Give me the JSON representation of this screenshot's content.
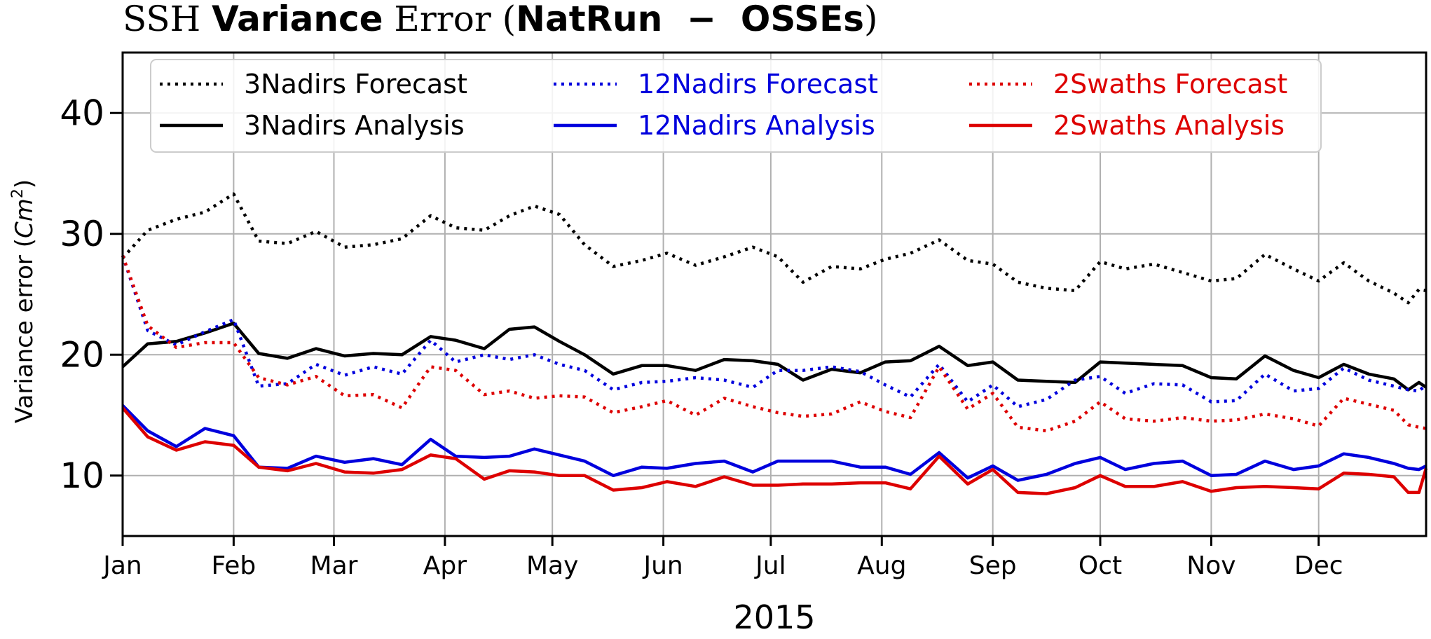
{
  "chart_data": {
    "type": "line",
    "title_parts": [
      {
        "text": "SSH ",
        "serif": true,
        "bold": false
      },
      {
        "text": "Variance",
        "serif": false,
        "bold": true
      },
      {
        "text": " Error (",
        "serif": true,
        "bold": false
      },
      {
        "text": "NatRun  −  OSSEs",
        "serif": false,
        "bold": true
      },
      {
        "text": ")",
        "serif": true,
        "bold": false
      }
    ],
    "xlabel": "2015",
    "ylabel": "Variance error",
    "ylabel_unit_base": "Cm",
    "ylabel_unit_exp": "2",
    "ylim": [
      5,
      45
    ],
    "yticks": [
      10,
      20,
      30,
      40
    ],
    "xlim": [
      "2015-01-01",
      "2015-12-31"
    ],
    "xticks": [
      {
        "date": "2015-01-01",
        "label": "Jan"
      },
      {
        "date": "2015-02-01",
        "label": "Feb"
      },
      {
        "date": "2015-03-01",
        "label": "Mar"
      },
      {
        "date": "2015-04-01",
        "label": "Apr"
      },
      {
        "date": "2015-05-01",
        "label": "May"
      },
      {
        "date": "2015-06-01",
        "label": "Jun"
      },
      {
        "date": "2015-07-01",
        "label": "Jul"
      },
      {
        "date": "2015-08-01",
        "label": "Aug"
      },
      {
        "date": "2015-09-01",
        "label": "Sep"
      },
      {
        "date": "2015-10-01",
        "label": "Oct"
      },
      {
        "date": "2015-11-01",
        "label": "Nov"
      },
      {
        "date": "2015-12-01",
        "label": "Dec"
      }
    ],
    "grid": true,
    "legend_position": "top",
    "x": [
      "2015-01-01",
      "2015-01-08",
      "2015-01-16",
      "2015-01-24",
      "2015-02-01",
      "2015-02-08",
      "2015-02-16",
      "2015-02-24",
      "2015-03-04",
      "2015-03-12",
      "2015-03-20",
      "2015-03-28",
      "2015-04-04",
      "2015-04-12",
      "2015-04-19",
      "2015-04-26",
      "2015-05-03",
      "2015-05-10",
      "2015-05-18",
      "2015-05-26",
      "2015-06-02",
      "2015-06-10",
      "2015-06-18",
      "2015-06-26",
      "2015-07-03",
      "2015-07-10",
      "2015-07-18",
      "2015-07-26",
      "2015-08-02",
      "2015-08-09",
      "2015-08-17",
      "2015-08-25",
      "2015-09-01",
      "2015-09-08",
      "2015-09-16",
      "2015-09-24",
      "2015-10-01",
      "2015-10-08",
      "2015-10-16",
      "2015-10-24",
      "2015-11-01",
      "2015-11-08",
      "2015-11-16",
      "2015-11-24",
      "2015-12-01",
      "2015-12-08",
      "2015-12-15",
      "2015-12-22"
    ],
    "series": [
      {
        "name": "3Nadirs Forecast",
        "color": "#000000",
        "dash": "dotted",
        "values": [
          28.0,
          30.3,
          31.2,
          31.8,
          33.3,
          29.4,
          29.2,
          30.2,
          28.9,
          29.1,
          29.6,
          31.5,
          30.5,
          30.3,
          31.5,
          32.3,
          31.6,
          29.1,
          27.3,
          27.8,
          28.4,
          27.4,
          28.1,
          28.9,
          28.1,
          26.0,
          27.3,
          27.1,
          27.9,
          28.4,
          29.5,
          27.8,
          27.5,
          26.0,
          25.5,
          25.3,
          27.7,
          27.1,
          27.5,
          26.8,
          26.1,
          26.3,
          28.3,
          27.1,
          26.1,
          27.6,
          26.1,
          25.1,
          24.3,
          25.4,
          25.3
        ],
        "x": [
          "2015-01-01",
          "2015-01-08",
          "2015-01-16",
          "2015-01-24",
          "2015-02-01",
          "2015-02-08",
          "2015-02-16",
          "2015-02-24",
          "2015-03-04",
          "2015-03-12",
          "2015-03-20",
          "2015-03-28",
          "2015-04-04",
          "2015-04-12",
          "2015-04-19",
          "2015-04-26",
          "2015-05-03",
          "2015-05-10",
          "2015-05-18",
          "2015-05-26",
          "2015-06-02",
          "2015-06-10",
          "2015-06-18",
          "2015-06-26",
          "2015-07-03",
          "2015-07-10",
          "2015-07-18",
          "2015-07-26",
          "2015-08-02",
          "2015-08-09",
          "2015-08-17",
          "2015-08-25",
          "2015-09-01",
          "2015-09-08",
          "2015-09-16",
          "2015-09-24",
          "2015-10-01",
          "2015-10-08",
          "2015-10-16",
          "2015-10-24",
          "2015-11-01",
          "2015-11-08",
          "2015-11-16",
          "2015-11-24",
          "2015-12-01",
          "2015-12-08",
          "2015-12-15",
          "2015-12-22",
          "2015-12-26",
          "2015-12-29",
          "2015-12-31"
        ]
      },
      {
        "name": "3Nadirs Analysis",
        "color": "#000000",
        "dash": "solid",
        "values": [
          19.0,
          20.9,
          21.1,
          21.8,
          22.6,
          20.1,
          19.7,
          20.5,
          19.9,
          20.1,
          20.0,
          21.5,
          21.2,
          20.5,
          22.1,
          22.3,
          21.1,
          20.0,
          18.4,
          19.1,
          19.1,
          18.7,
          19.6,
          19.5,
          19.2,
          17.9,
          18.8,
          18.5,
          19.4,
          19.5,
          20.7,
          19.1,
          19.4,
          17.9,
          17.8,
          17.7,
          19.4,
          19.3,
          19.2,
          19.1,
          18.1,
          18.0,
          19.9,
          18.7,
          18.1,
          19.2,
          18.4,
          18.0,
          17.1,
          17.7,
          17.3
        ],
        "x": [
          "2015-01-01",
          "2015-01-08",
          "2015-01-16",
          "2015-01-24",
          "2015-02-01",
          "2015-02-08",
          "2015-02-16",
          "2015-02-24",
          "2015-03-04",
          "2015-03-12",
          "2015-03-20",
          "2015-03-28",
          "2015-04-04",
          "2015-04-12",
          "2015-04-19",
          "2015-04-26",
          "2015-05-03",
          "2015-05-10",
          "2015-05-18",
          "2015-05-26",
          "2015-06-02",
          "2015-06-10",
          "2015-06-18",
          "2015-06-26",
          "2015-07-03",
          "2015-07-10",
          "2015-07-18",
          "2015-07-26",
          "2015-08-02",
          "2015-08-09",
          "2015-08-17",
          "2015-08-25",
          "2015-09-01",
          "2015-09-08",
          "2015-09-16",
          "2015-09-24",
          "2015-10-01",
          "2015-10-08",
          "2015-10-16",
          "2015-10-24",
          "2015-11-01",
          "2015-11-08",
          "2015-11-16",
          "2015-11-24",
          "2015-12-01",
          "2015-12-08",
          "2015-12-15",
          "2015-12-22",
          "2015-12-26",
          "2015-12-29",
          "2015-12-31"
        ]
      },
      {
        "name": "12Nadirs Forecast",
        "color": "#0000dd",
        "dash": "dotted",
        "values": [
          28.2,
          22.0,
          20.8,
          21.9,
          22.9,
          17.4,
          17.6,
          19.2,
          18.3,
          19.0,
          18.4,
          21.2,
          19.4,
          20.0,
          19.6,
          20.0,
          19.2,
          18.7,
          17.1,
          17.7,
          17.8,
          18.1,
          17.9,
          17.3,
          18.7,
          18.7,
          19.0,
          18.6,
          17.5,
          16.5,
          19.2,
          16.1,
          17.5,
          15.7,
          16.3,
          17.9,
          18.2,
          16.8,
          17.6,
          17.5,
          16.1,
          16.2,
          18.4,
          17.0,
          17.2,
          18.9,
          17.9,
          17.4,
          17.1,
          17.0,
          17.5
        ],
        "x": [
          "2015-01-01",
          "2015-01-08",
          "2015-01-16",
          "2015-01-24",
          "2015-02-01",
          "2015-02-08",
          "2015-02-16",
          "2015-02-24",
          "2015-03-04",
          "2015-03-12",
          "2015-03-20",
          "2015-03-28",
          "2015-04-04",
          "2015-04-12",
          "2015-04-19",
          "2015-04-26",
          "2015-05-03",
          "2015-05-10",
          "2015-05-18",
          "2015-05-26",
          "2015-06-02",
          "2015-06-10",
          "2015-06-18",
          "2015-06-26",
          "2015-07-03",
          "2015-07-10",
          "2015-07-18",
          "2015-07-26",
          "2015-08-02",
          "2015-08-09",
          "2015-08-17",
          "2015-08-25",
          "2015-09-01",
          "2015-09-08",
          "2015-09-16",
          "2015-09-24",
          "2015-10-01",
          "2015-10-08",
          "2015-10-16",
          "2015-10-24",
          "2015-11-01",
          "2015-11-08",
          "2015-11-16",
          "2015-11-24",
          "2015-12-01",
          "2015-12-08",
          "2015-12-15",
          "2015-12-22",
          "2015-12-26",
          "2015-12-29",
          "2015-12-31"
        ]
      },
      {
        "name": "12Nadirs Analysis",
        "color": "#0000dd",
        "dash": "solid",
        "values": [
          15.8,
          13.7,
          12.4,
          13.9,
          13.3,
          10.7,
          10.6,
          11.6,
          11.1,
          11.4,
          10.9,
          13.0,
          11.6,
          11.5,
          11.6,
          12.2,
          11.7,
          11.2,
          10.0,
          10.7,
          10.6,
          11.0,
          11.2,
          10.3,
          11.2,
          11.2,
          11.2,
          10.7,
          10.7,
          10.1,
          11.9,
          9.8,
          10.8,
          9.6,
          10.1,
          11.0,
          11.5,
          10.5,
          11.0,
          11.2,
          10.0,
          10.1,
          11.2,
          10.5,
          10.8,
          11.8,
          11.5,
          11.0,
          10.6,
          10.5,
          10.8
        ],
        "x": [
          "2015-01-01",
          "2015-01-08",
          "2015-01-16",
          "2015-01-24",
          "2015-02-01",
          "2015-02-08",
          "2015-02-16",
          "2015-02-24",
          "2015-03-04",
          "2015-03-12",
          "2015-03-20",
          "2015-03-28",
          "2015-04-04",
          "2015-04-12",
          "2015-04-19",
          "2015-04-26",
          "2015-05-03",
          "2015-05-10",
          "2015-05-18",
          "2015-05-26",
          "2015-06-02",
          "2015-06-10",
          "2015-06-18",
          "2015-06-26",
          "2015-07-03",
          "2015-07-10",
          "2015-07-18",
          "2015-07-26",
          "2015-08-02",
          "2015-08-09",
          "2015-08-17",
          "2015-08-25",
          "2015-09-01",
          "2015-09-08",
          "2015-09-16",
          "2015-09-24",
          "2015-10-01",
          "2015-10-08",
          "2015-10-16",
          "2015-10-24",
          "2015-11-01",
          "2015-11-08",
          "2015-11-16",
          "2015-11-24",
          "2015-12-01",
          "2015-12-08",
          "2015-12-15",
          "2015-12-22",
          "2015-12-26",
          "2015-12-29",
          "2015-12-31"
        ]
      },
      {
        "name": "2Swaths Forecast",
        "color": "#dd0000",
        "dash": "dotted",
        "values": [
          28.2,
          22.4,
          20.6,
          21.0,
          21.0,
          18.1,
          17.5,
          18.2,
          16.6,
          16.7,
          15.6,
          19.0,
          18.7,
          16.7,
          17.0,
          16.4,
          16.6,
          16.5,
          15.2,
          15.7,
          16.2,
          15.0,
          16.4,
          15.7,
          15.2,
          14.9,
          15.1,
          16.1,
          15.3,
          14.8,
          19.0,
          15.5,
          16.8,
          14.0,
          13.7,
          14.5,
          16.1,
          14.7,
          14.5,
          14.8,
          14.5,
          14.6,
          15.1,
          14.7,
          14.1,
          16.4,
          15.9,
          15.4,
          14.2,
          14.0,
          13.9
        ],
        "x": [
          "2015-01-01",
          "2015-01-08",
          "2015-01-16",
          "2015-01-24",
          "2015-02-01",
          "2015-02-08",
          "2015-02-16",
          "2015-02-24",
          "2015-03-04",
          "2015-03-12",
          "2015-03-20",
          "2015-03-28",
          "2015-04-04",
          "2015-04-12",
          "2015-04-19",
          "2015-04-26",
          "2015-05-03",
          "2015-05-10",
          "2015-05-18",
          "2015-05-26",
          "2015-06-02",
          "2015-06-10",
          "2015-06-18",
          "2015-06-26",
          "2015-07-03",
          "2015-07-10",
          "2015-07-18",
          "2015-07-26",
          "2015-08-02",
          "2015-08-09",
          "2015-08-17",
          "2015-08-25",
          "2015-09-01",
          "2015-09-08",
          "2015-09-16",
          "2015-09-24",
          "2015-10-01",
          "2015-10-08",
          "2015-10-16",
          "2015-10-24",
          "2015-11-01",
          "2015-11-08",
          "2015-11-16",
          "2015-11-24",
          "2015-12-01",
          "2015-12-08",
          "2015-12-15",
          "2015-12-22",
          "2015-12-26",
          "2015-12-29",
          "2015-12-31"
        ]
      },
      {
        "name": "2Swaths Analysis",
        "color": "#dd0000",
        "dash": "solid",
        "values": [
          15.6,
          13.2,
          12.1,
          12.8,
          12.5,
          10.7,
          10.4,
          11.0,
          10.3,
          10.2,
          10.5,
          11.7,
          11.4,
          9.7,
          10.4,
          10.3,
          10.0,
          10.0,
          8.8,
          9.0,
          9.5,
          9.1,
          9.9,
          9.2,
          9.2,
          9.3,
          9.3,
          9.4,
          9.4,
          8.9,
          11.6,
          9.3,
          10.5,
          8.6,
          8.5,
          9.0,
          10.0,
          9.1,
          9.1,
          9.5,
          8.7,
          9.0,
          9.1,
          9.0,
          8.9,
          10.2,
          10.1,
          9.9,
          8.6,
          8.6,
          10.6
        ],
        "x": [
          "2015-01-01",
          "2015-01-08",
          "2015-01-16",
          "2015-01-24",
          "2015-02-01",
          "2015-02-08",
          "2015-02-16",
          "2015-02-24",
          "2015-03-04",
          "2015-03-12",
          "2015-03-20",
          "2015-03-28",
          "2015-04-04",
          "2015-04-12",
          "2015-04-19",
          "2015-04-26",
          "2015-05-03",
          "2015-05-10",
          "2015-05-18",
          "2015-05-26",
          "2015-06-02",
          "2015-06-10",
          "2015-06-18",
          "2015-06-26",
          "2015-07-03",
          "2015-07-10",
          "2015-07-18",
          "2015-07-26",
          "2015-08-02",
          "2015-08-09",
          "2015-08-17",
          "2015-08-25",
          "2015-09-01",
          "2015-09-08",
          "2015-09-16",
          "2015-09-24",
          "2015-10-01",
          "2015-10-08",
          "2015-10-16",
          "2015-10-24",
          "2015-11-01",
          "2015-11-08",
          "2015-11-16",
          "2015-11-24",
          "2015-12-01",
          "2015-12-08",
          "2015-12-15",
          "2015-12-22",
          "2015-12-26",
          "2015-12-29",
          "2015-12-31"
        ]
      }
    ]
  }
}
